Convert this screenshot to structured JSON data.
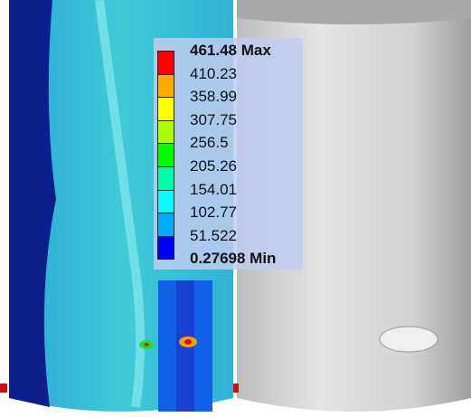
{
  "legend": {
    "labels": [
      "461.48 Max",
      "410.23",
      "358.99",
      "307.75",
      "256.5",
      "205.26",
      "154.01",
      "102.77",
      "51.522",
      "0.27698 Min"
    ],
    "colors": [
      "#ff0000",
      "#ffaa00",
      "#ffff00",
      "#aaff00",
      "#00ff00",
      "#00ffaa",
      "#00ffff",
      "#00aaff",
      "#0000ff"
    ]
  }
}
